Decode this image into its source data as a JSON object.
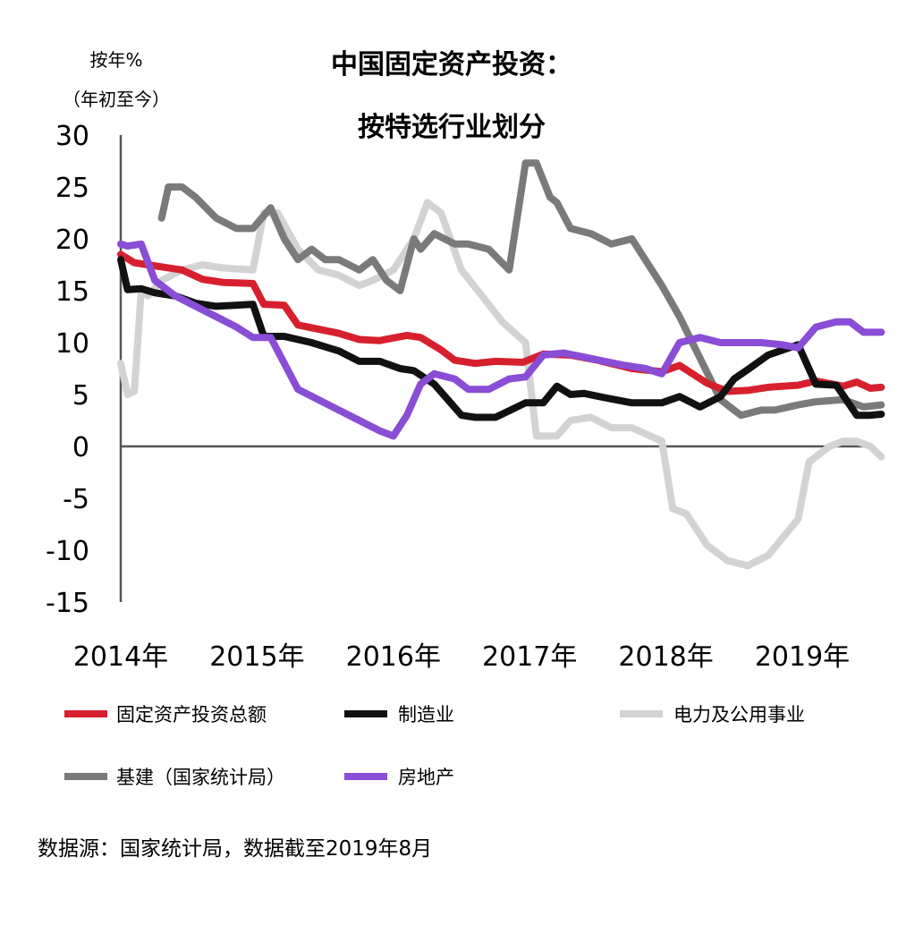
{
  "chart_data": {
    "type": "line",
    "title_line1": "中国固定资产投资：",
    "title_line2": "按特选行业划分",
    "ylabel_line1": "按年%",
    "ylabel_line2": "（年初至今）",
    "ylim": [
      -15,
      30
    ],
    "yticks": [
      30,
      25,
      20,
      15,
      10,
      5,
      0,
      -5,
      -10,
      -15
    ],
    "xlim": [
      2014.0,
      2019.58
    ],
    "xticks": [
      {
        "value": 2014.0,
        "label": "2014年"
      },
      {
        "value": 2015.0,
        "label": "2015年"
      },
      {
        "value": 2016.0,
        "label": "2016年"
      },
      {
        "value": 2017.0,
        "label": "2017年"
      },
      {
        "value": 2018.0,
        "label": "2018年"
      },
      {
        "value": 2019.0,
        "label": "2019年"
      }
    ],
    "series": [
      {
        "name": "固定资产投资总额",
        "color": "#d7202e",
        "x": [
          2014.0,
          2014.1,
          2014.2,
          2014.3,
          2014.45,
          2014.6,
          2014.75,
          2014.97,
          2015.05,
          2015.2,
          2015.3,
          2015.45,
          2015.6,
          2015.75,
          2015.9,
          2016.1,
          2016.2,
          2016.35,
          2016.45,
          2016.6,
          2016.75,
          2016.95,
          2017.1,
          2017.3,
          2017.5,
          2017.75,
          2017.97,
          2018.1,
          2018.3,
          2018.45,
          2018.6,
          2018.75,
          2018.97,
          2019.1,
          2019.3,
          2019.4,
          2019.5,
          2019.58
        ],
        "y": [
          18.5,
          17.7,
          17.5,
          17.3,
          17.0,
          16.1,
          15.8,
          15.7,
          13.7,
          13.6,
          11.7,
          11.3,
          10.9,
          10.3,
          10.2,
          10.7,
          10.5,
          9.3,
          8.3,
          8.0,
          8.2,
          8.1,
          8.9,
          8.8,
          8.3,
          7.5,
          7.2,
          7.8,
          6.1,
          5.3,
          5.4,
          5.7,
          5.9,
          6.3,
          5.8,
          6.2,
          5.6,
          5.7
        ]
      },
      {
        "name": "制造业",
        "color": "#111111",
        "x": [
          2014.0,
          2014.05,
          2014.15,
          2014.25,
          2014.4,
          2014.55,
          2014.7,
          2014.97,
          2015.05,
          2015.2,
          2015.4,
          2015.6,
          2015.75,
          2015.9,
          2016.05,
          2016.15,
          2016.3,
          2016.5,
          2016.6,
          2016.75,
          2016.97,
          2017.1,
          2017.2,
          2017.3,
          2017.4,
          2017.55,
          2017.75,
          2017.97,
          2018.1,
          2018.25,
          2018.4,
          2018.5,
          2018.6,
          2018.75,
          2018.97,
          2019.1,
          2019.25,
          2019.4,
          2019.5,
          2019.58
        ],
        "y": [
          18.0,
          15.1,
          15.2,
          14.8,
          14.5,
          13.8,
          13.5,
          13.7,
          10.6,
          10.6,
          10.0,
          9.2,
          8.2,
          8.2,
          7.5,
          7.3,
          6.0,
          3.0,
          2.8,
          2.8,
          4.2,
          4.2,
          5.8,
          5.0,
          5.1,
          4.7,
          4.2,
          4.2,
          4.8,
          3.8,
          4.8,
          6.5,
          7.4,
          8.8,
          9.8,
          6.0,
          5.9,
          3.0,
          3.0,
          3.1
        ]
      },
      {
        "name": "电力及公用事业",
        "color": "#d3d3d3",
        "x": [
          2014.0,
          2014.05,
          2014.1,
          2014.15,
          2014.2,
          2014.3,
          2014.45,
          2014.6,
          2014.75,
          2014.97,
          2015.05,
          2015.15,
          2015.3,
          2015.45,
          2015.6,
          2015.75,
          2015.85,
          2016.0,
          2016.15,
          2016.25,
          2016.35,
          2016.5,
          2016.65,
          2016.8,
          2016.97,
          2017.05,
          2017.2,
          2017.3,
          2017.45,
          2017.6,
          2017.75,
          2017.97,
          2018.05,
          2018.15,
          2018.3,
          2018.45,
          2018.6,
          2018.75,
          2018.97,
          2019.05,
          2019.2,
          2019.3,
          2019.4,
          2019.5,
          2019.58
        ],
        "y": [
          8.0,
          5.0,
          5.3,
          15.0,
          14.5,
          16.0,
          17.0,
          17.5,
          17.2,
          17.0,
          22.5,
          22.5,
          19.0,
          17.0,
          16.5,
          15.5,
          16.0,
          17.0,
          20.0,
          23.5,
          22.5,
          17.0,
          14.5,
          12.0,
          10.0,
          1.0,
          1.0,
          2.5,
          2.8,
          1.8,
          1.8,
          0.5,
          -6.0,
          -6.5,
          -9.5,
          -11.0,
          -11.5,
          -10.5,
          -7.0,
          -1.5,
          0.0,
          0.5,
          0.5,
          0.0,
          -1.0
        ]
      },
      {
        "name": "基建（国家统计局）",
        "color": "#7a7a7a",
        "x": [
          2014.3,
          2014.35,
          2014.45,
          2014.55,
          2014.7,
          2014.85,
          2014.97,
          2015.1,
          2015.2,
          2015.3,
          2015.4,
          2015.5,
          2015.6,
          2015.75,
          2015.85,
          2015.95,
          2016.05,
          2016.15,
          2016.2,
          2016.3,
          2016.45,
          2016.55,
          2016.7,
          2016.85,
          2016.97,
          2017.05,
          2017.15,
          2017.2,
          2017.3,
          2017.45,
          2017.6,
          2017.75,
          2017.97,
          2018.1,
          2018.25,
          2018.4,
          2018.55,
          2018.7,
          2018.8,
          2018.97,
          2019.1,
          2019.3,
          2019.45,
          2019.58
        ],
        "y": [
          22.0,
          25.0,
          25.0,
          24.0,
          22.0,
          21.0,
          21.0,
          23.0,
          20.0,
          18.0,
          19.0,
          18.0,
          18.0,
          17.0,
          18.0,
          16.0,
          15.0,
          20.0,
          19.0,
          20.5,
          19.5,
          19.5,
          19.0,
          17.0,
          27.3,
          27.3,
          24.0,
          23.5,
          21.0,
          20.5,
          19.5,
          20.0,
          15.5,
          12.5,
          8.5,
          4.5,
          3.0,
          3.5,
          3.5,
          4.0,
          4.3,
          4.5,
          3.8,
          4.0
        ]
      },
      {
        "name": "房地产",
        "color": "#8a4dd6",
        "x": [
          2014.0,
          2014.05,
          2014.15,
          2014.25,
          2014.4,
          2014.55,
          2014.7,
          2014.85,
          2014.97,
          2015.1,
          2015.2,
          2015.3,
          2015.45,
          2015.6,
          2015.75,
          2015.9,
          2016.0,
          2016.1,
          2016.2,
          2016.3,
          2016.45,
          2016.55,
          2016.7,
          2016.85,
          2016.97,
          2017.1,
          2017.25,
          2017.4,
          2017.55,
          2017.7,
          2017.85,
          2017.97,
          2018.1,
          2018.25,
          2018.4,
          2018.55,
          2018.7,
          2018.85,
          2018.97,
          2019.1,
          2019.25,
          2019.35,
          2019.45,
          2019.58
        ],
        "y": [
          19.5,
          19.3,
          19.5,
          16.0,
          14.5,
          13.5,
          12.5,
          11.5,
          10.5,
          10.5,
          8.0,
          5.5,
          4.5,
          3.5,
          2.5,
          1.5,
          1.0,
          3.0,
          6.0,
          7.0,
          6.5,
          5.5,
          5.5,
          6.5,
          6.7,
          8.8,
          9.0,
          8.6,
          8.2,
          7.8,
          7.5,
          7.0,
          10.0,
          10.5,
          10.0,
          10.0,
          10.0,
          9.8,
          9.5,
          11.5,
          12.0,
          12.0,
          11.0,
          11.0
        ]
      }
    ],
    "legend": [
      {
        "label": "固定资产投资总额",
        "color": "#d7202e"
      },
      {
        "label": "制造业",
        "color": "#111111"
      },
      {
        "label": "电力及公用事业",
        "color": "#d3d3d3"
      },
      {
        "label": "基建（国家统计局）",
        "color": "#7a7a7a"
      },
      {
        "label": "房地产",
        "color": "#8a4dd6"
      }
    ],
    "legend_placement": "bottom",
    "grid": false,
    "source": "数据源：国家统计局，数据截至2019年8月"
  }
}
